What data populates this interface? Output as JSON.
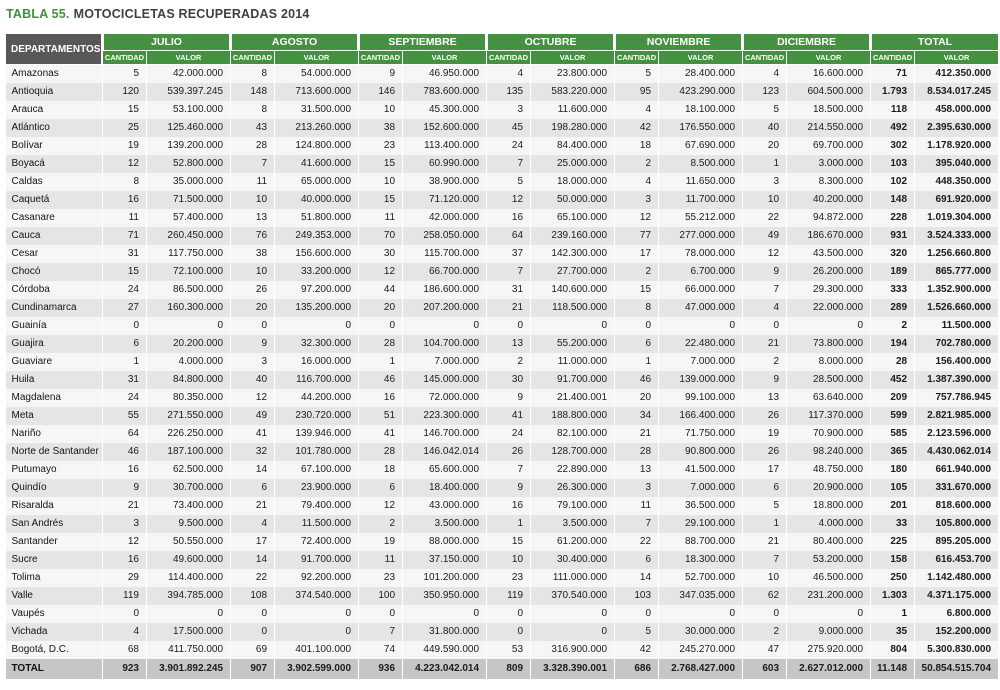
{
  "colors": {
    "header_green": "#44913f",
    "title_green": "#3f9140",
    "corner_gray": "#58585a",
    "row_light": "#f6f6f6",
    "row_dark": "#e5e5e5",
    "total_row_gray": "#c6c6c6"
  },
  "title": {
    "label": "TABLA 55.",
    "text": "MOTOCICLETAS RECUPERADAS 2014"
  },
  "table": {
    "corner_header": "DEPARTAMENTOS",
    "month_groups": [
      "JULIO",
      "AGOSTO",
      "SEPTIEMBRE",
      "OCTUBRE",
      "NOVIEMBRE",
      "DICIEMBRE",
      "TOTAL"
    ],
    "sub_headers": [
      "CANTIDAD",
      "VALOR"
    ],
    "rows": [
      {
        "name": "Amazonas",
        "values": [
          "5",
          "42.000.000",
          "8",
          "54.000.000",
          "9",
          "46.950.000",
          "4",
          "23.800.000",
          "5",
          "28.400.000",
          "4",
          "16.600.000",
          "71",
          "412.350.000"
        ]
      },
      {
        "name": "Antioquia",
        "values": [
          "120",
          "539.397.245",
          "148",
          "713.600.000",
          "146",
          "783.600.000",
          "135",
          "583.220.000",
          "95",
          "423.290.000",
          "123",
          "604.500.000",
          "1.793",
          "8.534.017.245"
        ]
      },
      {
        "name": "Arauca",
        "values": [
          "15",
          "53.100.000",
          "8",
          "31.500.000",
          "10",
          "45.300.000",
          "3",
          "11.600.000",
          "4",
          "18.100.000",
          "5",
          "18.500.000",
          "118",
          "458.000.000"
        ]
      },
      {
        "name": "Atlántico",
        "values": [
          "25",
          "125.460.000",
          "43",
          "213.260.000",
          "38",
          "152.600.000",
          "45",
          "198.280.000",
          "42",
          "176.550.000",
          "40",
          "214.550.000",
          "492",
          "2.395.630.000"
        ]
      },
      {
        "name": "Bolívar",
        "values": [
          "19",
          "139.200.000",
          "28",
          "124.800.000",
          "23",
          "113.400.000",
          "24",
          "84.400.000",
          "18",
          "67.690.000",
          "20",
          "69.700.000",
          "302",
          "1.178.920.000"
        ]
      },
      {
        "name": "Boyacá",
        "values": [
          "12",
          "52.800.000",
          "7",
          "41.600.000",
          "15",
          "60.990.000",
          "7",
          "25.000.000",
          "2",
          "8.500.000",
          "1",
          "3.000.000",
          "103",
          "395.040.000"
        ]
      },
      {
        "name": "Caldas",
        "values": [
          "8",
          "35.000.000",
          "11",
          "65.000.000",
          "10",
          "38.900.000",
          "5",
          "18.000.000",
          "4",
          "11.650.000",
          "3",
          "8.300.000",
          "102",
          "448.350.000"
        ]
      },
      {
        "name": "Caquetá",
        "values": [
          "16",
          "71.500.000",
          "10",
          "40.000.000",
          "15",
          "71.120.000",
          "12",
          "50.000.000",
          "3",
          "11.700.000",
          "10",
          "40.200.000",
          "148",
          "691.920.000"
        ]
      },
      {
        "name": "Casanare",
        "values": [
          "11",
          "57.400.000",
          "13",
          "51.800.000",
          "11",
          "42.000.000",
          "16",
          "65.100.000",
          "12",
          "55.212.000",
          "22",
          "94.872.000",
          "228",
          "1.019.304.000"
        ]
      },
      {
        "name": "Cauca",
        "values": [
          "71",
          "260.450.000",
          "76",
          "249.353.000",
          "70",
          "258.050.000",
          "64",
          "239.160.000",
          "77",
          "277.000.000",
          "49",
          "186.670.000",
          "931",
          "3.524.333.000"
        ]
      },
      {
        "name": "Cesar",
        "values": [
          "31",
          "117.750.000",
          "38",
          "156.600.000",
          "30",
          "115.700.000",
          "37",
          "142.300.000",
          "17",
          "78.000.000",
          "12",
          "43.500.000",
          "320",
          "1.256.660.800"
        ]
      },
      {
        "name": "Chocó",
        "values": [
          "15",
          "72.100.000",
          "10",
          "33.200.000",
          "12",
          "66.700.000",
          "7",
          "27.700.000",
          "2",
          "6.700.000",
          "9",
          "26.200.000",
          "189",
          "865.777.000"
        ]
      },
      {
        "name": "Córdoba",
        "values": [
          "24",
          "86.500.000",
          "26",
          "97.200.000",
          "44",
          "186.600.000",
          "31",
          "140.600.000",
          "15",
          "66.000.000",
          "7",
          "29.300.000",
          "333",
          "1.352.900.000"
        ]
      },
      {
        "name": "Cundinamarca",
        "values": [
          "27",
          "160.300.000",
          "20",
          "135.200.000",
          "20",
          "207.200.000",
          "21",
          "118.500.000",
          "8",
          "47.000.000",
          "4",
          "22.000.000",
          "289",
          "1.526.660.000"
        ]
      },
      {
        "name": "Guainía",
        "values": [
          "0",
          "0",
          "0",
          "0",
          "0",
          "0",
          "0",
          "0",
          "0",
          "0",
          "0",
          "0",
          "2",
          "11.500.000"
        ]
      },
      {
        "name": "Guajira",
        "values": [
          "6",
          "20.200.000",
          "9",
          "32.300.000",
          "28",
          "104.700.000",
          "13",
          "55.200.000",
          "6",
          "22.480.000",
          "21",
          "73.800.000",
          "194",
          "702.780.000"
        ]
      },
      {
        "name": "Guaviare",
        "values": [
          "1",
          "4.000.000",
          "3",
          "16.000.000",
          "1",
          "7.000.000",
          "2",
          "11.000.000",
          "1",
          "7.000.000",
          "2",
          "8.000.000",
          "28",
          "156.400.000"
        ]
      },
      {
        "name": "Huila",
        "values": [
          "31",
          "84.800.000",
          "40",
          "116.700.000",
          "46",
          "145.000.000",
          "30",
          "91.700.000",
          "46",
          "139.000.000",
          "9",
          "28.500.000",
          "452",
          "1.387.390.000"
        ]
      },
      {
        "name": "Magdalena",
        "values": [
          "24",
          "80.350.000",
          "12",
          "44.200.000",
          "16",
          "72.000.000",
          "9",
          "21.400.001",
          "20",
          "99.100.000",
          "13",
          "63.640.000",
          "209",
          "757.786.945"
        ]
      },
      {
        "name": "Meta",
        "values": [
          "55",
          "271.550.000",
          "49",
          "230.720.000",
          "51",
          "223.300.000",
          "41",
          "188.800.000",
          "34",
          "166.400.000",
          "26",
          "117.370.000",
          "599",
          "2.821.985.000"
        ]
      },
      {
        "name": "Nariño",
        "values": [
          "64",
          "226.250.000",
          "41",
          "139.946.000",
          "41",
          "146.700.000",
          "24",
          "82.100.000",
          "21",
          "71.750.000",
          "19",
          "70.900.000",
          "585",
          "2.123.596.000"
        ]
      },
      {
        "name": "Norte de Santander",
        "values": [
          "46",
          "187.100.000",
          "32",
          "101.780.000",
          "28",
          "146.042.014",
          "26",
          "128.700.000",
          "28",
          "90.800.000",
          "26",
          "98.240.000",
          "365",
          "4.430.062.014"
        ]
      },
      {
        "name": "Putumayo",
        "values": [
          "16",
          "62.500.000",
          "14",
          "67.100.000",
          "18",
          "65.600.000",
          "7",
          "22.890.000",
          "13",
          "41.500.000",
          "17",
          "48.750.000",
          "180",
          "661.940.000"
        ]
      },
      {
        "name": "Quindío",
        "values": [
          "9",
          "30.700.000",
          "6",
          "23.900.000",
          "6",
          "18.400.000",
          "9",
          "26.300.000",
          "3",
          "7.000.000",
          "6",
          "20.900.000",
          "105",
          "331.670.000"
        ]
      },
      {
        "name": "Risaralda",
        "values": [
          "21",
          "73.400.000",
          "21",
          "79.400.000",
          "12",
          "43.000.000",
          "16",
          "79.100.000",
          "11",
          "36.500.000",
          "5",
          "18.800.000",
          "201",
          "818.600.000"
        ]
      },
      {
        "name": "San Andrés",
        "values": [
          "3",
          "9.500.000",
          "4",
          "11.500.000",
          "2",
          "3.500.000",
          "1",
          "3.500.000",
          "7",
          "29.100.000",
          "1",
          "4.000.000",
          "33",
          "105.800.000"
        ]
      },
      {
        "name": "Santander",
        "values": [
          "12",
          "50.550.000",
          "17",
          "72.400.000",
          "19",
          "88.000.000",
          "15",
          "61.200.000",
          "22",
          "88.700.000",
          "21",
          "80.400.000",
          "225",
          "895.205.000"
        ]
      },
      {
        "name": "Sucre",
        "values": [
          "16",
          "49.600.000",
          "14",
          "91.700.000",
          "11",
          "37.150.000",
          "10",
          "30.400.000",
          "6",
          "18.300.000",
          "7",
          "53.200.000",
          "158",
          "616.453.700"
        ]
      },
      {
        "name": "Tolima",
        "values": [
          "29",
          "114.400.000",
          "22",
          "92.200.000",
          "23",
          "101.200.000",
          "23",
          "111.000.000",
          "14",
          "52.700.000",
          "10",
          "46.500.000",
          "250",
          "1.142.480.000"
        ]
      },
      {
        "name": "Valle",
        "values": [
          "119",
          "394.785.000",
          "108",
          "374.540.000",
          "100",
          "350.950.000",
          "119",
          "370.540.000",
          "103",
          "347.035.000",
          "62",
          "231.200.000",
          "1.303",
          "4.371.175.000"
        ]
      },
      {
        "name": "Vaupés",
        "values": [
          "0",
          "0",
          "0",
          "0",
          "0",
          "0",
          "0",
          "0",
          "0",
          "0",
          "0",
          "0",
          "1",
          "6.800.000"
        ]
      },
      {
        "name": "Vichada",
        "values": [
          "4",
          "17.500.000",
          "0",
          "0",
          "7",
          "31.800.000",
          "0",
          "0",
          "5",
          "30.000.000",
          "2",
          "9.000.000",
          "35",
          "152.200.000"
        ]
      },
      {
        "name": "Bogotá, D.C.",
        "values": [
          "68",
          "411.750.000",
          "69",
          "401.100.000",
          "74",
          "449.590.000",
          "53",
          "316.900.000",
          "42",
          "245.270.000",
          "47",
          "275.920.000",
          "804",
          "5.300.830.000"
        ]
      }
    ],
    "total_row": {
      "name": "TOTAL",
      "values": [
        "923",
        "3.901.892.245",
        "907",
        "3.902.599.000",
        "936",
        "4.223.042.014",
        "809",
        "3.328.390.001",
        "686",
        "2.768.427.000",
        "603",
        "2.627.012.000",
        "11.148",
        "50.854.515.704"
      ]
    }
  }
}
